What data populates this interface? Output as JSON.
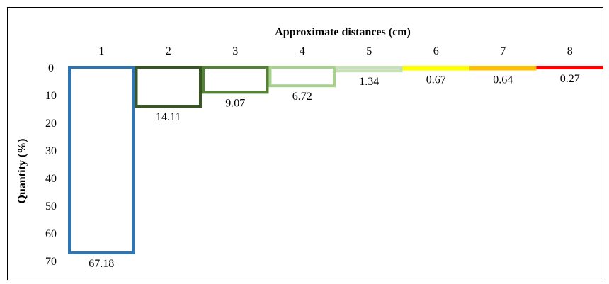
{
  "chart_data": {
    "type": "bar",
    "title": "",
    "xlabel": "Approximate distances (cm)",
    "ylabel": "Quantity (%)",
    "x_axis_position": "top",
    "y_axis_reversed": true,
    "categories": [
      "1",
      "2",
      "3",
      "4",
      "5",
      "6",
      "7",
      "8"
    ],
    "values": [
      67.18,
      14.11,
      9.07,
      6.72,
      1.34,
      0.67,
      0.64,
      0.27
    ],
    "data_labels": [
      "67.18",
      "14.11",
      "9.07",
      "6.72",
      "1.34",
      "0.67",
      "0.64",
      "0.27"
    ],
    "y_ticks": [
      "0",
      "10",
      "20",
      "30",
      "40",
      "50",
      "60",
      "70"
    ],
    "ylim": [
      0,
      70
    ],
    "grid": false,
    "legend": "none",
    "colors": [
      "#2E75B6",
      "#375623",
      "#548235",
      "#A9D18E",
      "#C5E0B4",
      "#FFFF00",
      "#FFC000",
      "#FF0000"
    ]
  }
}
